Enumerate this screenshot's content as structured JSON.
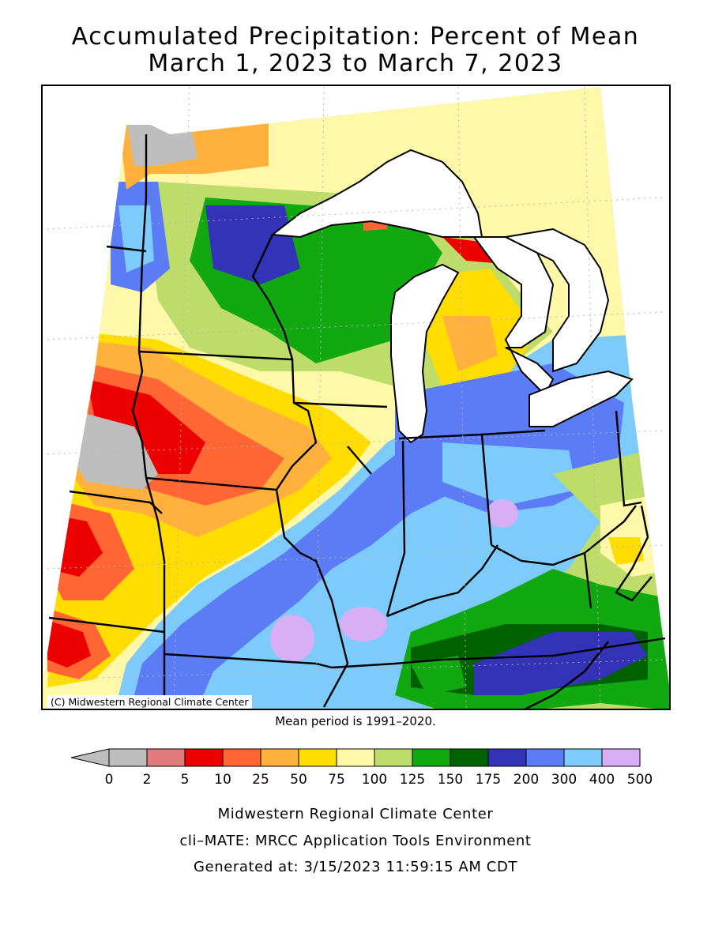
{
  "title": {
    "line1": "Accumulated Precipitation: Percent of Mean",
    "line2": "March 1, 2023 to March 7, 2023"
  },
  "map": {
    "credit": "(C) Midwestern Regional Climate Center",
    "mean_period": "Mean period is 1991–2020."
  },
  "legend": {
    "labels": [
      "0",
      "2",
      "5",
      "10",
      "25",
      "50",
      "75",
      "100",
      "125",
      "150",
      "175",
      "200",
      "300",
      "400",
      "500"
    ],
    "colors": [
      "#bebebe",
      "#e17a7a",
      "#ec0000",
      "#ff6633",
      "#ffb13b",
      "#ffdd00",
      "#fff8a8",
      "#bedc6a",
      "#12a812",
      "#006200",
      "#3333b8",
      "#5b7cf5",
      "#7dcbfa",
      "#d8aef5"
    ],
    "underflow_color": "#bebebe"
  },
  "footer": {
    "line1": "Midwestern Regional Climate Center",
    "line2": "cli–MATE: MRCC Application Tools Environment",
    "line3": "Generated at: 3/15/2023 11:59:15 AM CDT"
  }
}
